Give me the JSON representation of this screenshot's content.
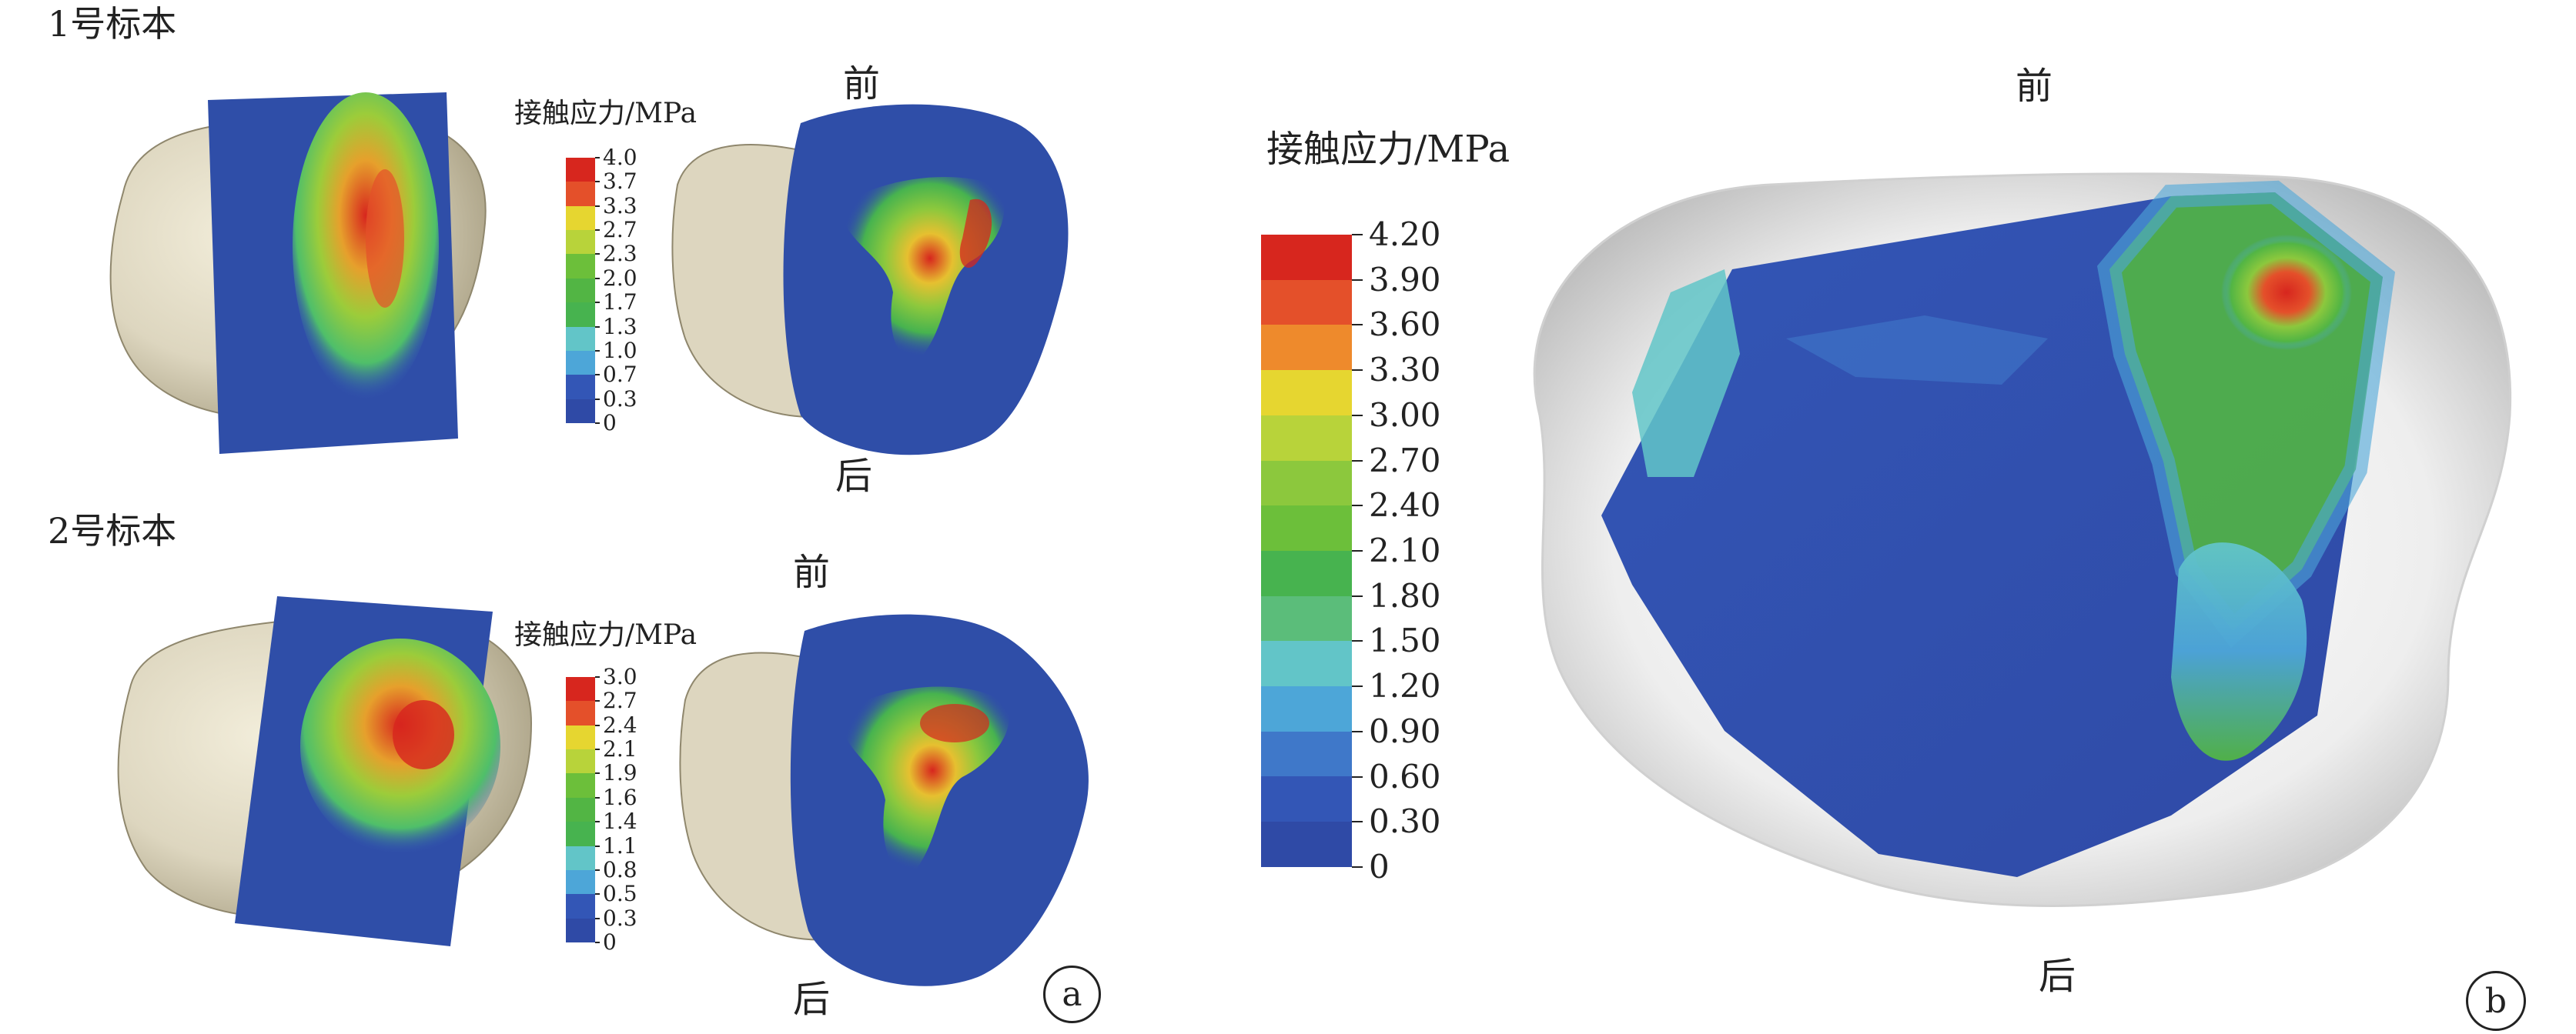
{
  "panel_a": {
    "circle_label": "a",
    "specimen1": {
      "title": "1号标本",
      "front": "前",
      "back": "后",
      "legend": {
        "title": "接触应力/MPa",
        "ticks": [
          "4.0",
          "3.7",
          "3.3",
          "2.7",
          "2.3",
          "2.0",
          "1.7",
          "1.3",
          "1.0",
          "0.7",
          "0.3",
          "0"
        ]
      }
    },
    "specimen2": {
      "title": "2号标本",
      "front": "前",
      "back": "后",
      "legend": {
        "title": "接触应力/MPa",
        "ticks": [
          "3.0",
          "2.7",
          "2.4",
          "2.1",
          "1.9",
          "1.6",
          "1.4",
          "1.1",
          "0.8",
          "0.5",
          "0.3",
          "0"
        ]
      }
    }
  },
  "panel_b": {
    "circle_label": "b",
    "front": "前",
    "back": "后",
    "legend": {
      "title": "接触应力/MPa",
      "ticks": [
        "4.20",
        "3.90",
        "3.60",
        "3.30",
        "3.00",
        "2.70",
        "2.40",
        "2.10",
        "1.80",
        "1.50",
        "1.20",
        "0.90",
        "0.60",
        "0.30",
        "0"
      ]
    }
  },
  "colors": {
    "scale": [
      "#d7261e",
      "#e4502a",
      "#ee8a2c",
      "#e6d630",
      "#b8d33a",
      "#8cc83d",
      "#6cbf3a",
      "#52b544",
      "#47b34f",
      "#5bbd7a",
      "#62c5c8",
      "#4da6d8",
      "#3f78c9",
      "#3356b6",
      "#2f4aa6"
    ],
    "bone": "#ddd6bf",
    "bone_shadow": "#b7ae94",
    "field_blue": "#2f4ea8"
  }
}
